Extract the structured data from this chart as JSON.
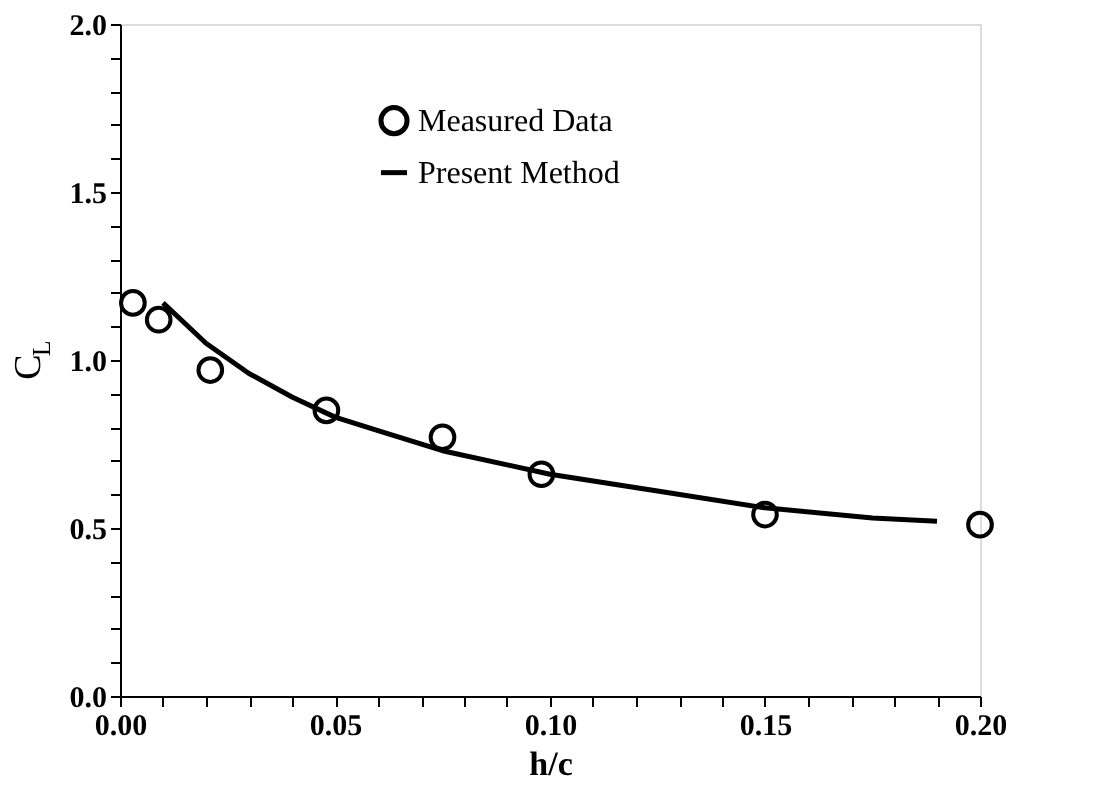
{
  "chart_data": {
    "type": "scatter",
    "xlabel": "h/c",
    "ylabel": "C$_{L}$",
    "xlim": [
      0,
      0.2
    ],
    "ylim": [
      0,
      2.0
    ],
    "xticks": [
      {
        "value": 0,
        "label": "0.00"
      },
      {
        "value": 0.01,
        "label": null
      },
      {
        "value": 0.02,
        "label": null
      },
      {
        "value": 0.03,
        "label": null
      },
      {
        "value": 0.04,
        "label": null
      },
      {
        "value": 0.05,
        "label": "0.05"
      },
      {
        "value": 0.06,
        "label": null
      },
      {
        "value": 0.07,
        "label": null
      },
      {
        "value": 0.08,
        "label": null
      },
      {
        "value": 0.09,
        "label": null
      },
      {
        "value": 0.1,
        "label": "0.10"
      },
      {
        "value": 0.11,
        "label": null
      },
      {
        "value": 0.12,
        "label": null
      },
      {
        "value": 0.13,
        "label": null
      },
      {
        "value": 0.14,
        "label": null
      },
      {
        "value": 0.15,
        "label": "0.15"
      },
      {
        "value": 0.16,
        "label": null
      },
      {
        "value": 0.17,
        "label": null
      },
      {
        "value": 0.18,
        "label": null
      },
      {
        "value": 0.19,
        "label": null
      },
      {
        "value": 0.2,
        "label": "0.20"
      }
    ],
    "yticks": [
      {
        "value": 0,
        "label": "0.0"
      },
      {
        "value": 0.1,
        "label": null
      },
      {
        "value": 0.2,
        "label": null
      },
      {
        "value": 0.3,
        "label": null
      },
      {
        "value": 0.4,
        "label": null
      },
      {
        "value": 0.5,
        "label": "0.5"
      },
      {
        "value": 0.6,
        "label": null
      },
      {
        "value": 0.7,
        "label": null
      },
      {
        "value": 0.8,
        "label": null
      },
      {
        "value": 0.9,
        "label": null
      },
      {
        "value": 1.0,
        "label": "1.0"
      },
      {
        "value": 1.1,
        "label": null
      },
      {
        "value": 1.2,
        "label": null
      },
      {
        "value": 1.3,
        "label": null
      },
      {
        "value": 1.4,
        "label": null
      },
      {
        "value": 1.5,
        "label": "1.5"
      },
      {
        "value": 1.6,
        "label": null
      },
      {
        "value": 1.7,
        "label": null
      },
      {
        "value": 1.8,
        "label": null
      },
      {
        "value": 1.9,
        "label": null
      },
      {
        "value": 2.0,
        "label": "2.0"
      }
    ],
    "grid": false,
    "legend": "top",
    "series": [
      {
        "name": "Measured Data",
        "marker": "circle",
        "color": "#000000",
        "x": [
          0.003,
          0.009,
          0.021,
          0.048,
          0.075,
          0.098,
          0.15,
          0.2
        ],
        "values": [
          1.17,
          1.12,
          0.97,
          0.85,
          0.77,
          0.66,
          0.54,
          0.51
        ]
      },
      {
        "name": "Present Method",
        "type": "line",
        "marker": "none",
        "line_style": "solid",
        "color": "#000000",
        "x": [
          0.01,
          0.015,
          0.02,
          0.03,
          0.04,
          0.05,
          0.06,
          0.075,
          0.1,
          0.125,
          0.15,
          0.175,
          0.19
        ],
        "values": [
          1.17,
          1.11,
          1.05,
          0.96,
          0.89,
          0.83,
          0.79,
          0.73,
          0.66,
          0.61,
          0.56,
          0.53,
          0.52
        ]
      }
    ]
  }
}
